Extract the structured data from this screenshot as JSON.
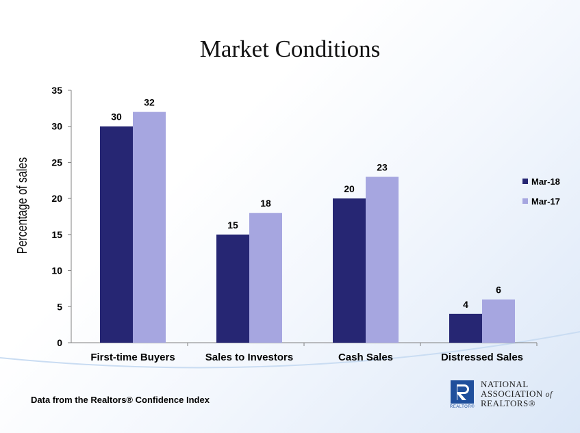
{
  "title": "Market Conditions",
  "footnote": "Data from the Realtors® Confidence Index",
  "logo": {
    "line1": "NATIONAL",
    "line2": "ASSOCIATION",
    "line2_suffix": "of",
    "line3": "REALTORS®",
    "mark_text": "REALTOR®"
  },
  "colors": {
    "series1": "#262673",
    "series2": "#a6a6e0",
    "axis": "#808080"
  },
  "chart_data": {
    "type": "bar",
    "categories": [
      "First-time Buyers",
      "Sales to Investors",
      "Cash Sales",
      "Distressed Sales"
    ],
    "series": [
      {
        "name": "Mar-18",
        "values": [
          30,
          15,
          20,
          4
        ]
      },
      {
        "name": "Mar-17",
        "values": [
          32,
          18,
          23,
          6
        ]
      }
    ],
    "ylabel": "Percentage of  sales",
    "xlabel": "",
    "ylim": [
      0,
      35
    ],
    "yticks": [
      0,
      5,
      10,
      15,
      20,
      25,
      30,
      35
    ],
    "legend_position": "right",
    "grid": false,
    "data_labels": true
  }
}
